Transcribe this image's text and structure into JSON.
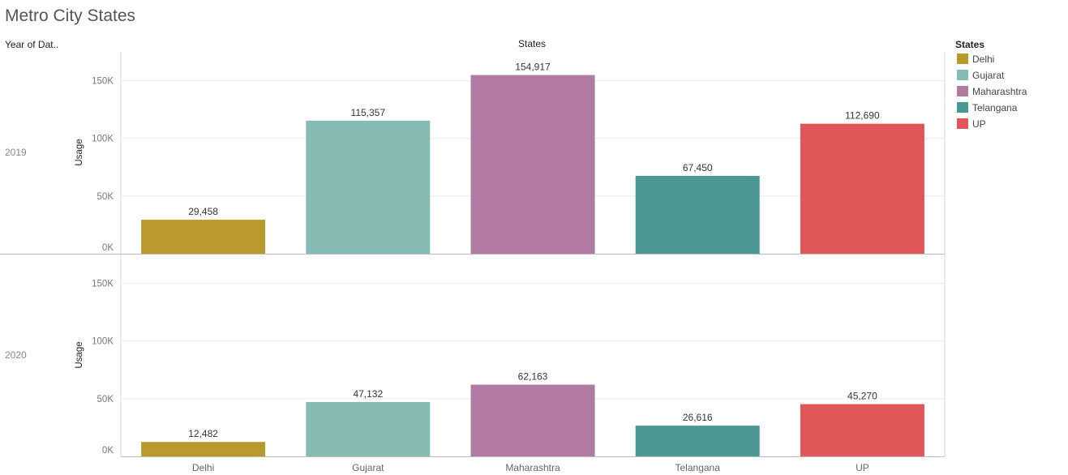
{
  "title": "Metro City States",
  "row_header": "Year of Dat..",
  "col_header": "States",
  "legend_title": "States",
  "chart_data": {
    "type": "bar",
    "title": "Metro City States",
    "categories": [
      "Delhi",
      "Gujarat",
      "Maharashtra",
      "Telangana",
      "UP"
    ],
    "colors": [
      "#b89a2c",
      "#86bcb6",
      "#b07aa1",
      "#499894",
      "#e15759"
    ],
    "ylabel": "Usage",
    "ylim": [
      0,
      175000
    ],
    "yticks": [
      0,
      50000,
      100000,
      150000
    ],
    "ytick_labels": [
      "0K",
      "50K",
      "100K",
      "150K"
    ],
    "panels": [
      {
        "name": "2019",
        "values": [
          29458,
          115357,
          154917,
          67450,
          112690
        ],
        "labels": [
          "29,458",
          "115,357",
          "154,917",
          "67,450",
          "112,690"
        ]
      },
      {
        "name": "2020",
        "values": [
          12482,
          47132,
          62163,
          26616,
          45270
        ],
        "labels": [
          "12,482",
          "47,132",
          "62,163",
          "26,616",
          "45,270"
        ]
      }
    ],
    "grid": true,
    "legend_position": "right"
  }
}
